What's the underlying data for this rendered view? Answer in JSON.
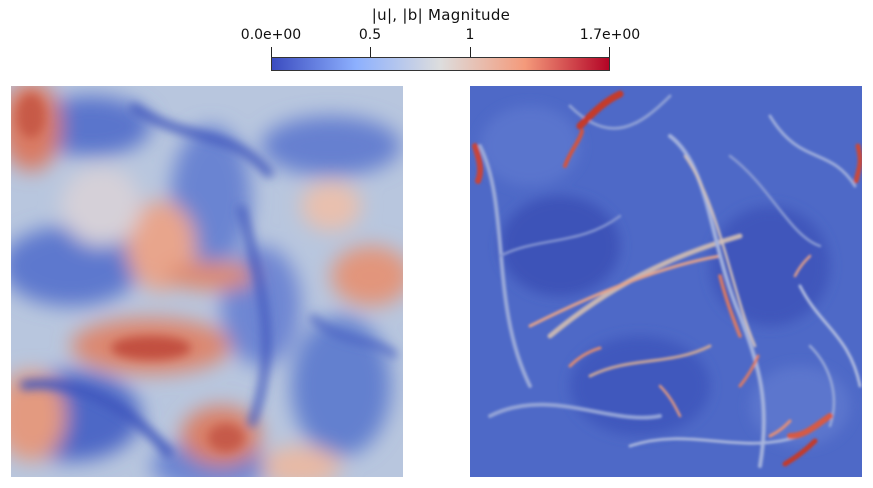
{
  "colorbar": {
    "title": "|u|, |b| Magnitude",
    "tick_labels": [
      "0.0e+00",
      "0.5",
      "1",
      "1.7e+00"
    ],
    "colors": {
      "low": "#3b4cc0",
      "mid": "#dddddd",
      "high": "#b40426"
    }
  },
  "panels": [
    {
      "name": "velocity-magnitude-field"
    },
    {
      "name": "magnetic-magnitude-field"
    }
  ]
}
